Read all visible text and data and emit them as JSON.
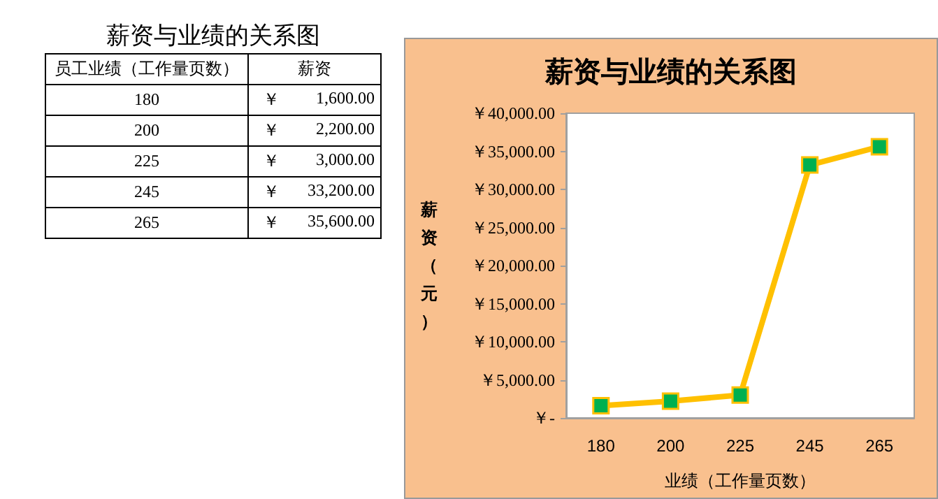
{
  "chart_data": {
    "type": "line",
    "title": "薪资与业绩的关系图",
    "xlabel": "业绩（工作量页数）",
    "ylabel": "薪资（元）",
    "categories": [
      "180",
      "200",
      "225",
      "245",
      "265"
    ],
    "series": [
      {
        "color": "#ffc000",
        "values": [
          1600,
          2200,
          3000,
          33200,
          35600
        ],
        "value_labels": [
          "￥ 1,600.00",
          "￥ 2,200.00",
          "￥ 3,000.00",
          "￥ 33,200.00",
          "￥ 35,600.00"
        ]
      }
    ],
    "ylim": [
      0,
      40000
    ],
    "yticks": [
      {
        "value": 0,
        "label": "￥-"
      },
      {
        "value": 5000,
        "label": "￥5,000.00"
      },
      {
        "value": 10000,
        "label": "￥10,000.00"
      },
      {
        "value": 15000,
        "label": "￥15,000.00"
      },
      {
        "value": 20000,
        "label": "￥20,000.00"
      },
      {
        "value": 25000,
        "label": "￥25,000.00"
      },
      {
        "value": 30000,
        "label": "￥30,000.00"
      },
      {
        "value": 35000,
        "label": "￥35,000.00"
      },
      {
        "value": 40000,
        "label": "￥40,000.00"
      }
    ],
    "annotations": [
      "薪资与业绩的关系图",
      "员工业绩（工作量页数）",
      "薪资"
    ],
    "grid": false,
    "marker": "square",
    "line_style": "solid"
  }
}
